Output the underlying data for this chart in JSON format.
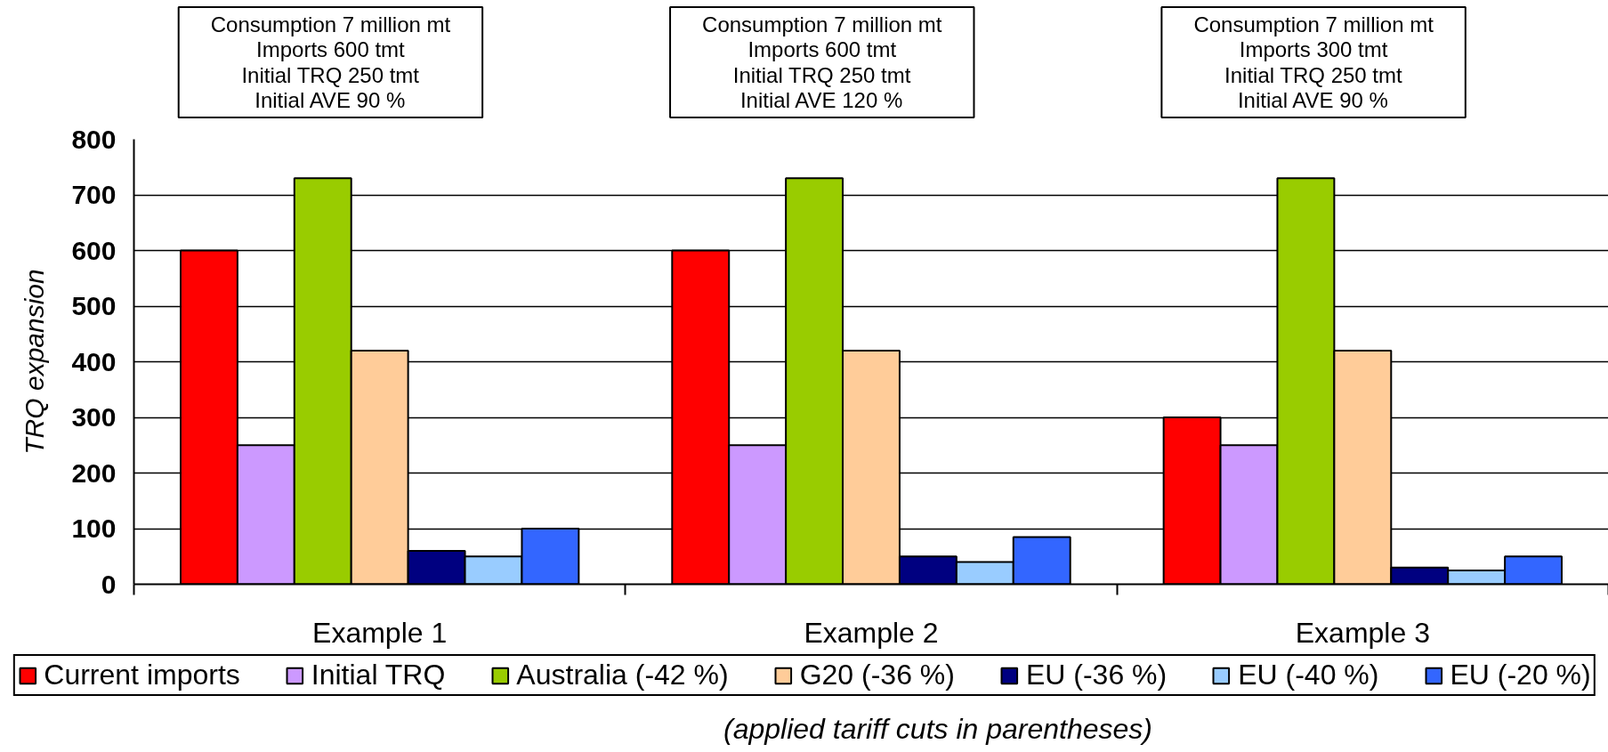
{
  "chart_data": {
    "type": "bar",
    "categories": [
      "Example 1",
      "Example 2",
      "Example 3"
    ],
    "series": [
      {
        "name": "Current imports",
        "color": "#ff0000",
        "values": [
          600,
          600,
          300
        ]
      },
      {
        "name": "Initial TRQ",
        "color": "#cc99ff",
        "values": [
          250,
          250,
          250
        ]
      },
      {
        "name": "Australia (-42 %)",
        "color": "#99cc00",
        "values": [
          730,
          730,
          730
        ]
      },
      {
        "name": "G20 (-36 %)",
        "color": "#ffcc99",
        "values": [
          420,
          420,
          420
        ]
      },
      {
        "name": "EU (-36 %)",
        "color": "#000080",
        "values": [
          60,
          50,
          30
        ]
      },
      {
        "name": "EU (-40 %)",
        "color": "#99ccff",
        "values": [
          50,
          40,
          25
        ]
      },
      {
        "name": "EU (-20 %)",
        "color": "#3366ff",
        "values": [
          100,
          85,
          50
        ]
      }
    ],
    "ylabel": "TRQ expansion",
    "ylim": [
      0,
      800
    ],
    "yticks": [
      0,
      100,
      200,
      300,
      400,
      500,
      600,
      700,
      800
    ],
    "grid": "y",
    "legend": "bottom",
    "annotations": [
      "Consumption 7 million mt\nImports 600 tmt\nInitial TRQ 250 tmt\nInitial AVE 90 %",
      "Consumption 7 million mt\nImports 600 tmt\nInitial TRQ 250 tmt\nInitial AVE 120 %",
      "Consumption 7 million mt\nImports 300 tmt\nInitial TRQ 250 tmt\nInitial AVE 90 %",
      "(applied tariff cuts in parentheses)"
    ]
  }
}
